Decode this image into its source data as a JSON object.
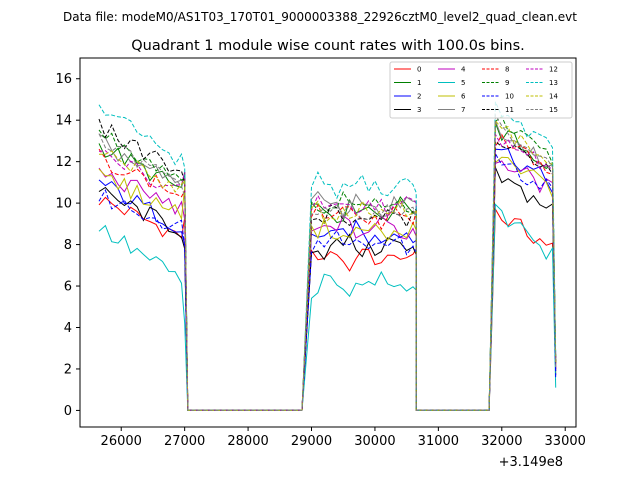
{
  "figure": {
    "suptitle": "Data file: modeM0/AS1T03_170T01_9000003388_22926cztM0_level2_quad_clean.evt",
    "offset_label": "+3.149e8"
  },
  "chart_data": {
    "type": "line",
    "title": "Quadrant 1 module wise count rates with 100.0s bins.",
    "xlabel": "",
    "ylabel": "",
    "x_offset": 314900000,
    "xlim": [
      25350,
      33170
    ],
    "ylim": [
      -0.8,
      17.0
    ],
    "xticks": [
      26000,
      27000,
      28000,
      29000,
      30000,
      31000,
      32000,
      33000
    ],
    "yticks": [
      0,
      2,
      4,
      6,
      8,
      10,
      12,
      14,
      16
    ],
    "legend": {
      "placement": "top-right",
      "columns": 4
    },
    "segments": [
      {
        "start": 25650,
        "end": 26950,
        "step": 100
      },
      {
        "start": 29000,
        "end": 30600,
        "step": 100
      },
      {
        "start": 31900,
        "end": 32800,
        "step": 100
      }
    ],
    "segment_edges": {
      "before_first": [
        25650
      ],
      "gap1": [
        27050,
        28850
      ],
      "gap2": [
        30650,
        31800
      ]
    },
    "series": [
      {
        "name": "0",
        "color": "#ff0000",
        "dashed": false,
        "levels": [
          10.2,
          7.3,
          9.5
        ],
        "slope": 0.1,
        "tail": [
          9.3,
          7.8,
          2.0
        ]
      },
      {
        "name": "1",
        "color": "#008000",
        "dashed": false,
        "levels": [
          12.8,
          9.7,
          13.6
        ],
        "slope": 0.12,
        "tail": [
          11.5,
          9.6,
          2.3
        ]
      },
      {
        "name": "2",
        "color": "#0000ff",
        "dashed": false,
        "levels": [
          11.0,
          8.5,
          12.8
        ],
        "slope": 0.12,
        "tail": [
          8.0,
          8.2,
          1.9
        ]
      },
      {
        "name": "3",
        "color": "#000000",
        "dashed": false,
        "levels": [
          10.5,
          7.9,
          11.3
        ],
        "slope": 0.1,
        "tail": [
          7.8,
          7.5,
          1.7
        ]
      },
      {
        "name": "4",
        "color": "#bf00bf",
        "dashed": false,
        "levels": [
          11.5,
          8.8,
          12.2
        ],
        "slope": 0.1,
        "tail": [
          9.2,
          8.4,
          2.0
        ]
      },
      {
        "name": "5",
        "color": "#00bfbf",
        "dashed": false,
        "levels": [
          8.8,
          6.1,
          9.7
        ],
        "slope": 0.14,
        "tail": [
          4.2,
          5.8,
          1.1
        ]
      },
      {
        "name": "6",
        "color": "#bfbf00",
        "dashed": false,
        "levels": [
          11.3,
          8.6,
          12.3
        ],
        "slope": 0.1,
        "tail": [
          10.8,
          8.7,
          2.2
        ]
      },
      {
        "name": "7",
        "color": "#808080",
        "dashed": false,
        "levels": [
          12.9,
          9.9,
          13.8
        ],
        "slope": 0.12,
        "tail": [
          10.9,
          10.1,
          2.4
        ]
      },
      {
        "name": "8",
        "color": "#ff0000",
        "dashed": true,
        "levels": [
          12.2,
          9.4,
          13.1
        ],
        "slope": 0.1,
        "tail": [
          10.6,
          9.6,
          2.2
        ]
      },
      {
        "name": "9",
        "color": "#008000",
        "dashed": true,
        "levels": [
          13.4,
          10.0,
          14.0
        ],
        "slope": 0.12,
        "tail": [
          11.2,
          9.5,
          2.3
        ]
      },
      {
        "name": "10",
        "color": "#0000ff",
        "dashed": true,
        "levels": [
          10.3,
          8.1,
          12.0
        ],
        "slope": 0.08,
        "tail": [
          7.9,
          7.6,
          1.5
        ]
      },
      {
        "name": "11",
        "color": "#000000",
        "dashed": true,
        "levels": [
          13.7,
          9.3,
          13.3
        ],
        "slope": 0.12,
        "tail": [
          11.0,
          9.7,
          2.4
        ]
      },
      {
        "name": "12",
        "color": "#bf00bf",
        "dashed": true,
        "levels": [
          12.4,
          9.9,
          13.2
        ],
        "slope": 0.1,
        "tail": [
          11.5,
          10.0,
          2.5
        ]
      },
      {
        "name": "13",
        "color": "#00bfbf",
        "dashed": true,
        "levels": [
          14.6,
          10.8,
          14.8
        ],
        "slope": 0.14,
        "tail": [
          11.7,
          10.5,
          2.6
        ]
      },
      {
        "name": "14",
        "color": "#bfbf00",
        "dashed": true,
        "levels": [
          12.5,
          9.5,
          13.6
        ],
        "slope": 0.1,
        "tail": [
          11.1,
          9.6,
          2.3
        ]
      },
      {
        "name": "15",
        "color": "#808080",
        "dashed": true,
        "levels": [
          13.0,
          9.6,
          13.8
        ],
        "slope": 0.12,
        "tail": [
          10.3,
          9.2,
          2.1
        ]
      }
    ]
  }
}
